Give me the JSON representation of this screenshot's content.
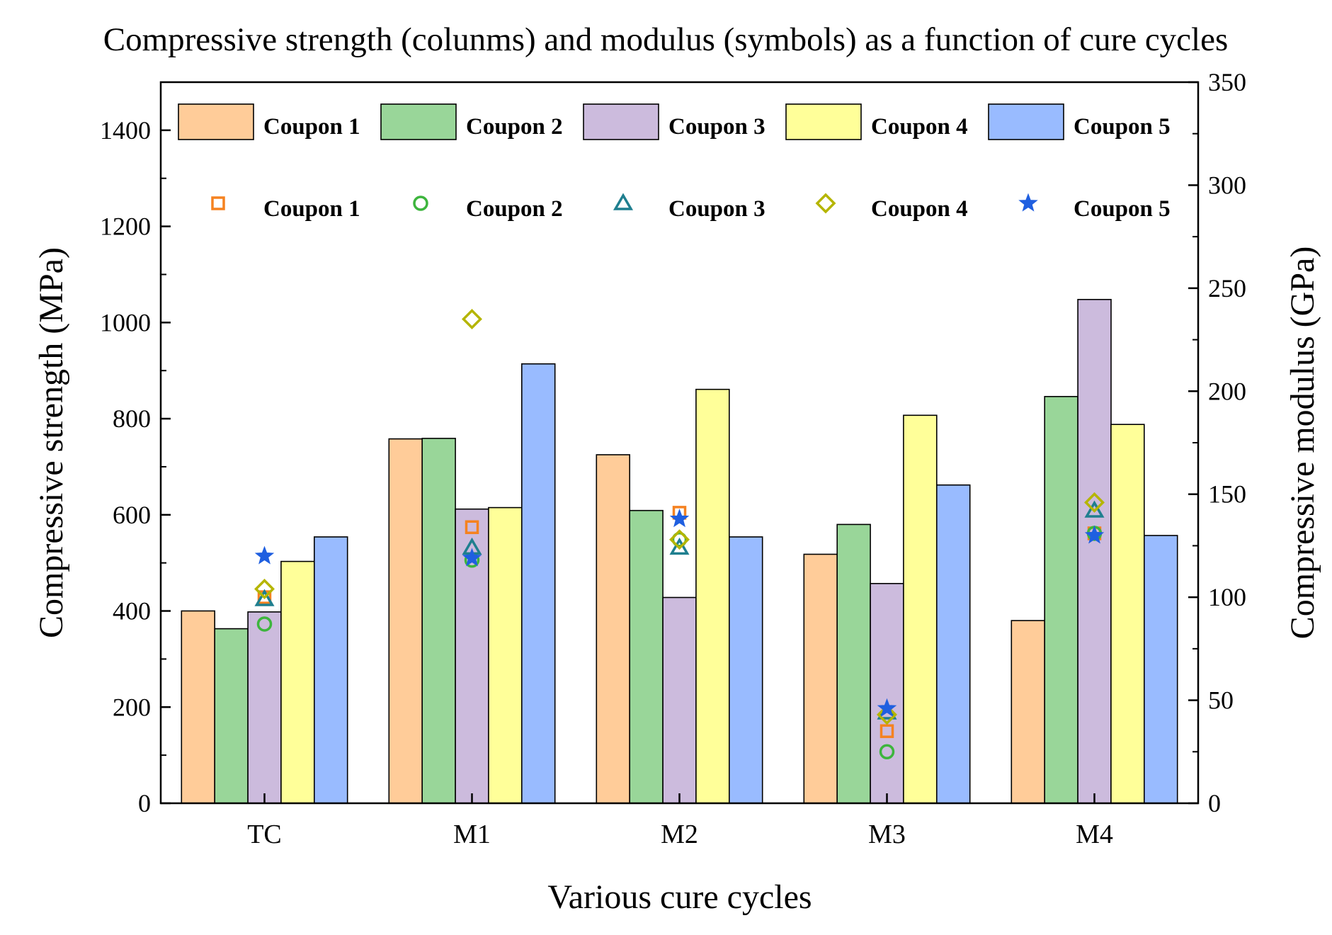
{
  "chart_data": {
    "type": "bar",
    "title": "Compressive strength (colunms) and modulus (symbols) as a function of cure cycles",
    "xlabel": "Various cure cycles",
    "ylabel": "Compressive strength (MPa)",
    "y2label": "Compressive modulus (GPa)",
    "ylim": [
      0,
      1500
    ],
    "y2lim": [
      0,
      350
    ],
    "yticks": [
      0,
      200,
      400,
      600,
      800,
      1000,
      1200,
      1400
    ],
    "y2ticks": [
      0,
      50,
      100,
      150,
      200,
      250,
      300,
      350
    ],
    "categories": [
      "TC",
      "M1",
      "M2",
      "M3",
      "M4"
    ],
    "legend_position": "top",
    "series": [
      {
        "name": "Coupon 1",
        "color": "#FFCC99",
        "values": [
          400,
          758,
          725,
          518,
          380
        ]
      },
      {
        "name": "Coupon 2",
        "color": "#99D699",
        "values": [
          363,
          759,
          609,
          580,
          846
        ]
      },
      {
        "name": "Coupon 3",
        "color": "#CCBBDD",
        "values": [
          398,
          612,
          428,
          457,
          1048
        ]
      },
      {
        "name": "Coupon 4",
        "color": "#FFFF99",
        "values": [
          503,
          615,
          861,
          807,
          788
        ]
      },
      {
        "name": "Coupon 5",
        "color": "#99BBFF",
        "values": [
          554,
          914,
          554,
          662,
          557
        ]
      }
    ],
    "modulus_series": [
      {
        "name": "Coupon 1",
        "marker": "square",
        "color": "#F58220",
        "values": [
          100,
          134,
          141,
          35,
          131
        ]
      },
      {
        "name": "Coupon 2",
        "marker": "circle",
        "color": "#3DB53D",
        "values": [
          87,
          118,
          128,
          25,
          131
        ]
      },
      {
        "name": "Coupon 3",
        "marker": "triangle",
        "color": "#1F7F8F",
        "values": [
          99,
          124,
          124,
          44,
          142
        ]
      },
      {
        "name": "Coupon 4",
        "marker": "diamond",
        "color": "#B5B500",
        "values": [
          104,
          235,
          128,
          43,
          146
        ]
      },
      {
        "name": "Coupon 5",
        "marker": "star",
        "color": "#1F5FE0",
        "values": [
          120,
          119,
          138,
          46,
          130
        ]
      }
    ]
  }
}
